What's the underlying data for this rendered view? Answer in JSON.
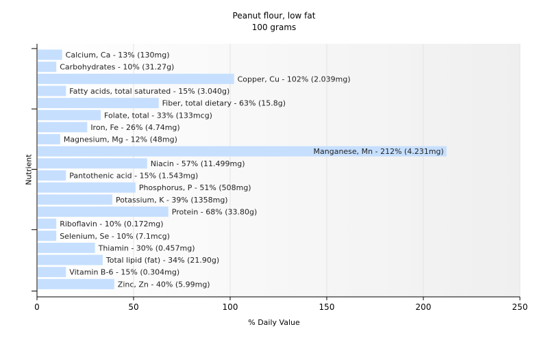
{
  "chart_data": {
    "type": "bar",
    "orientation": "horizontal",
    "title": "Peanut flour, low fat",
    "subtitle": "100 grams",
    "xlabel": "% Daily Value",
    "ylabel": "Nutrient",
    "xlim": [
      0,
      250
    ],
    "xticks": [
      0,
      50,
      100,
      150,
      200,
      250
    ],
    "grid": "vertical",
    "legend": "none",
    "bar_color": "#c6dfff",
    "categories": [
      "Calcium, Ca",
      "Carbohydrates",
      "Copper, Cu",
      "Fatty acids, total saturated",
      "Fiber, total dietary",
      "Folate, total",
      "Iron, Fe",
      "Magnesium, Mg",
      "Manganese, Mn",
      "Niacin",
      "Pantothenic acid",
      "Phosphorus, P",
      "Potassium, K",
      "Protein",
      "Riboflavin",
      "Selenium, Se",
      "Thiamin",
      "Total lipid (fat)",
      "Vitamin B-6",
      "Zinc, Zn"
    ],
    "values": [
      13,
      10,
      102,
      15,
      63,
      33,
      26,
      12,
      212,
      57,
      15,
      51,
      39,
      68,
      10,
      10,
      30,
      34,
      15,
      40
    ],
    "labels": [
      "Calcium, Ca - 13% (130mg)",
      "Carbohydrates - 10% (31.27g)",
      "Copper, Cu - 102% (2.039mg)",
      "Fatty acids, total saturated - 15% (3.040g)",
      "Fiber, total dietary - 63% (15.8g)",
      "Folate, total - 33% (133mcg)",
      "Iron, Fe - 26% (4.74mg)",
      "Magnesium, Mg - 12% (48mg)",
      "Manganese, Mn - 212% (4.231mg)",
      "Niacin - 57% (11.499mg)",
      "Pantothenic acid - 15% (1.543mg)",
      "Phosphorus, P - 51% (508mg)",
      "Potassium, K - 39% (1358mg)",
      "Protein - 68% (33.80g)",
      "Riboflavin - 10% (0.172mg)",
      "Selenium, Se - 10% (7.1mcg)",
      "Thiamin - 30% (0.457mg)",
      "Total lipid (fat) - 34% (21.90g)",
      "Vitamin B-6 - 15% (0.304mg)",
      "Zinc, Zn - 40% (5.99mg)"
    ]
  }
}
